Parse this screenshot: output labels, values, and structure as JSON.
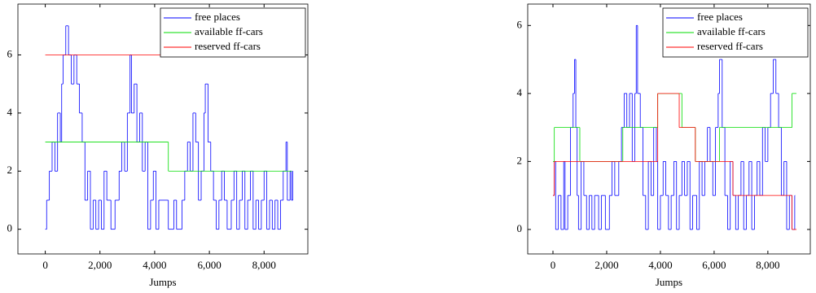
{
  "chart_data": [
    {
      "type": "line",
      "step": true,
      "xlabel": "Jumps",
      "legend": "upper right",
      "xlim": [
        -1000,
        9600
      ],
      "ylim": [
        -0.85,
        7.75
      ],
      "xticks": [
        0,
        {
          "value": 2000,
          "label": "2,000"
        },
        {
          "value": 4000,
          "label": "4,000"
        },
        {
          "value": 6000,
          "label": "6,000"
        },
        {
          "value": 8000,
          "label": "8,000"
        }
      ],
      "yticks": [
        0,
        2,
        4,
        6
      ],
      "series": [
        {
          "name": "free places",
          "color": "#0000ff",
          "x": [
            0,
            50,
            150,
            250,
            350,
            450,
            550,
            600,
            650,
            750,
            850,
            950,
            1050,
            1150,
            1250,
            1350,
            1450,
            1550,
            1650,
            1750,
            1850,
            1950,
            2050,
            2150,
            2250,
            2400,
            2550,
            2700,
            2800,
            2900,
            3000,
            3100,
            3150,
            3250,
            3350,
            3450,
            3550,
            3650,
            3750,
            3850,
            3950,
            4050,
            4150,
            4500,
            4700,
            4800,
            5000,
            5100,
            5200,
            5300,
            5400,
            5500,
            5600,
            5700,
            5800,
            5850,
            5950,
            6050,
            6150,
            6250,
            6350,
            6450,
            6550,
            6650,
            6800,
            6900,
            7000,
            7100,
            7200,
            7300,
            7400,
            7500,
            7600,
            7700,
            7800,
            7900,
            8000,
            8100,
            8200,
            8300,
            8400,
            8500,
            8600,
            8700,
            8800,
            8850,
            8950,
            9000,
            9050
          ],
          "values": [
            0,
            1,
            2,
            3,
            2,
            4,
            3,
            5,
            6,
            7,
            6,
            5,
            6,
            5,
            4,
            3,
            1,
            2,
            0,
            1,
            0,
            1,
            0,
            2,
            1,
            0,
            1,
            2,
            3,
            2,
            4,
            6,
            4,
            5,
            3,
            4,
            2,
            3,
            0,
            1,
            2,
            0,
            1,
            0,
            1,
            0,
            1,
            2,
            3,
            2,
            4,
            3,
            1,
            2,
            4,
            5,
            3,
            2,
            1,
            0,
            1,
            2,
            1,
            0,
            1,
            2,
            0,
            1,
            2,
            0,
            1,
            2,
            0,
            1,
            0,
            1,
            2,
            0,
            1,
            0,
            1,
            0,
            1,
            2,
            3,
            1,
            2,
            1,
            2
          ]
        },
        {
          "name": "available ff-cars",
          "color": "#00dd00",
          "x": [
            0,
            4500,
            9000
          ],
          "values": [
            3,
            2,
            2
          ]
        },
        {
          "name": "reserved ff-cars",
          "color": "#ff0000",
          "x": [
            0,
            9000
          ],
          "values": [
            6,
            6
          ]
        }
      ]
    },
    {
      "type": "line",
      "step": true,
      "xlabel": "Jumps",
      "legend": "upper right",
      "xlim": [
        -940,
        9580
      ],
      "ylim": [
        -0.72,
        6.63
      ],
      "xticks": [
        0,
        {
          "value": 2000,
          "label": "2,000"
        },
        {
          "value": 4000,
          "label": "4,000"
        },
        {
          "value": 6000,
          "label": "6,000"
        },
        {
          "value": 8000,
          "label": "8,000"
        }
      ],
      "yticks": [
        0,
        2,
        4,
        6
      ],
      "series": [
        {
          "name": "free places",
          "color": "#0000ff",
          "x": [
            0,
            50,
            100,
            200,
            300,
            400,
            450,
            550,
            650,
            750,
            800,
            850,
            900,
            950,
            1050,
            1150,
            1250,
            1350,
            1450,
            1550,
            1700,
            1800,
            1950,
            2100,
            2200,
            2300,
            2450,
            2550,
            2650,
            2750,
            2850,
            2950,
            3050,
            3100,
            3150,
            3250,
            3350,
            3450,
            3550,
            3650,
            3750,
            3850,
            3900,
            4000,
            4100,
            4200,
            4300,
            4400,
            4500,
            4600,
            4700,
            4800,
            4900,
            5000,
            5100,
            5200,
            5350,
            5450,
            5550,
            5650,
            5750,
            5850,
            5950,
            6050,
            6150,
            6200,
            6300,
            6400,
            6500,
            6600,
            6700,
            6800,
            6900,
            7000,
            7100,
            7200,
            7300,
            7400,
            7500,
            7600,
            7700,
            7800,
            7900,
            8000,
            8100,
            8200,
            8300,
            8400,
            8500,
            8600,
            8700,
            8800,
            8900,
            9000
          ],
          "values": [
            1,
            2,
            0,
            1,
            0,
            2,
            0,
            1,
            3,
            4,
            5,
            3,
            1,
            0,
            2,
            1,
            0,
            1,
            0,
            1,
            0,
            1,
            0,
            1,
            2,
            1,
            2,
            3,
            4,
            3,
            4,
            2,
            4,
            6,
            4,
            3,
            1,
            0,
            2,
            1,
            3,
            2,
            0,
            1,
            2,
            1,
            0,
            1,
            2,
            0,
            1,
            2,
            1,
            2,
            0,
            1,
            0,
            2,
            1,
            2,
            3,
            2,
            1,
            3,
            4,
            5,
            3,
            1,
            0,
            2,
            1,
            0,
            1,
            2,
            0,
            1,
            2,
            0,
            1,
            2,
            1,
            3,
            2,
            3,
            4,
            5,
            4,
            3,
            1,
            2,
            0,
            1,
            0,
            1
          ]
        },
        {
          "name": "available ff-cars",
          "color": "#00dd00",
          "x": [
            0,
            50,
            1000,
            2600,
            3900,
            4800,
            5300,
            6200,
            8900,
            9050
          ],
          "values": [
            2,
            3,
            2,
            3,
            4,
            3,
            2,
            3,
            4,
            4
          ]
        },
        {
          "name": "reserved ff-cars",
          "color": "#ff0000",
          "x": [
            0,
            50,
            1000,
            3900,
            4700,
            5300,
            6700,
            8900,
            9050
          ],
          "values": [
            1,
            2,
            2,
            4,
            3,
            2,
            1,
            0,
            0
          ]
        }
      ]
    }
  ]
}
